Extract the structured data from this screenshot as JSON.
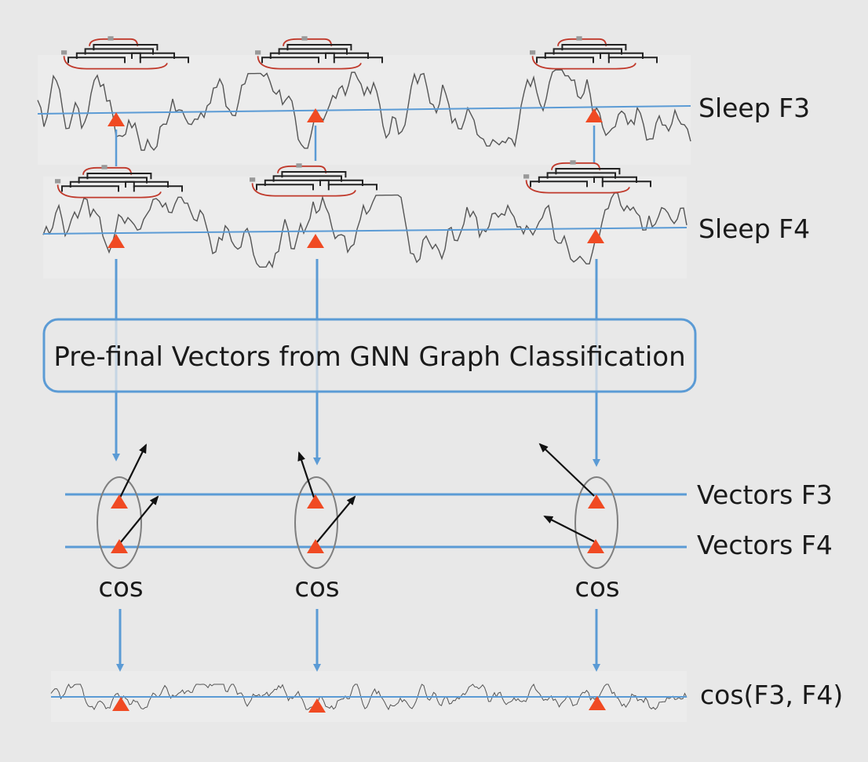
{
  "labels": {
    "sleep_f3": "Sleep F3",
    "sleep_f4": "Sleep F4",
    "vectors_f3": "Vectors F3",
    "vectors_f4": "Vectors F4",
    "cos_result": "cos(F3, F4)"
  },
  "process_box": {
    "label": "Pre-final Vectors from GNN Graph Classification"
  },
  "cos_labels": [
    "cos",
    "cos",
    "cos"
  ],
  "colors": {
    "background": "#e8e8e8",
    "accent_blue": "#5b9bd5",
    "marker_red": "#f04a23",
    "signal_gray": "#555555",
    "graph_red": "#c0392b",
    "ellipse_gray": "#7f7f7f",
    "text": "#1a1a1a"
  }
}
